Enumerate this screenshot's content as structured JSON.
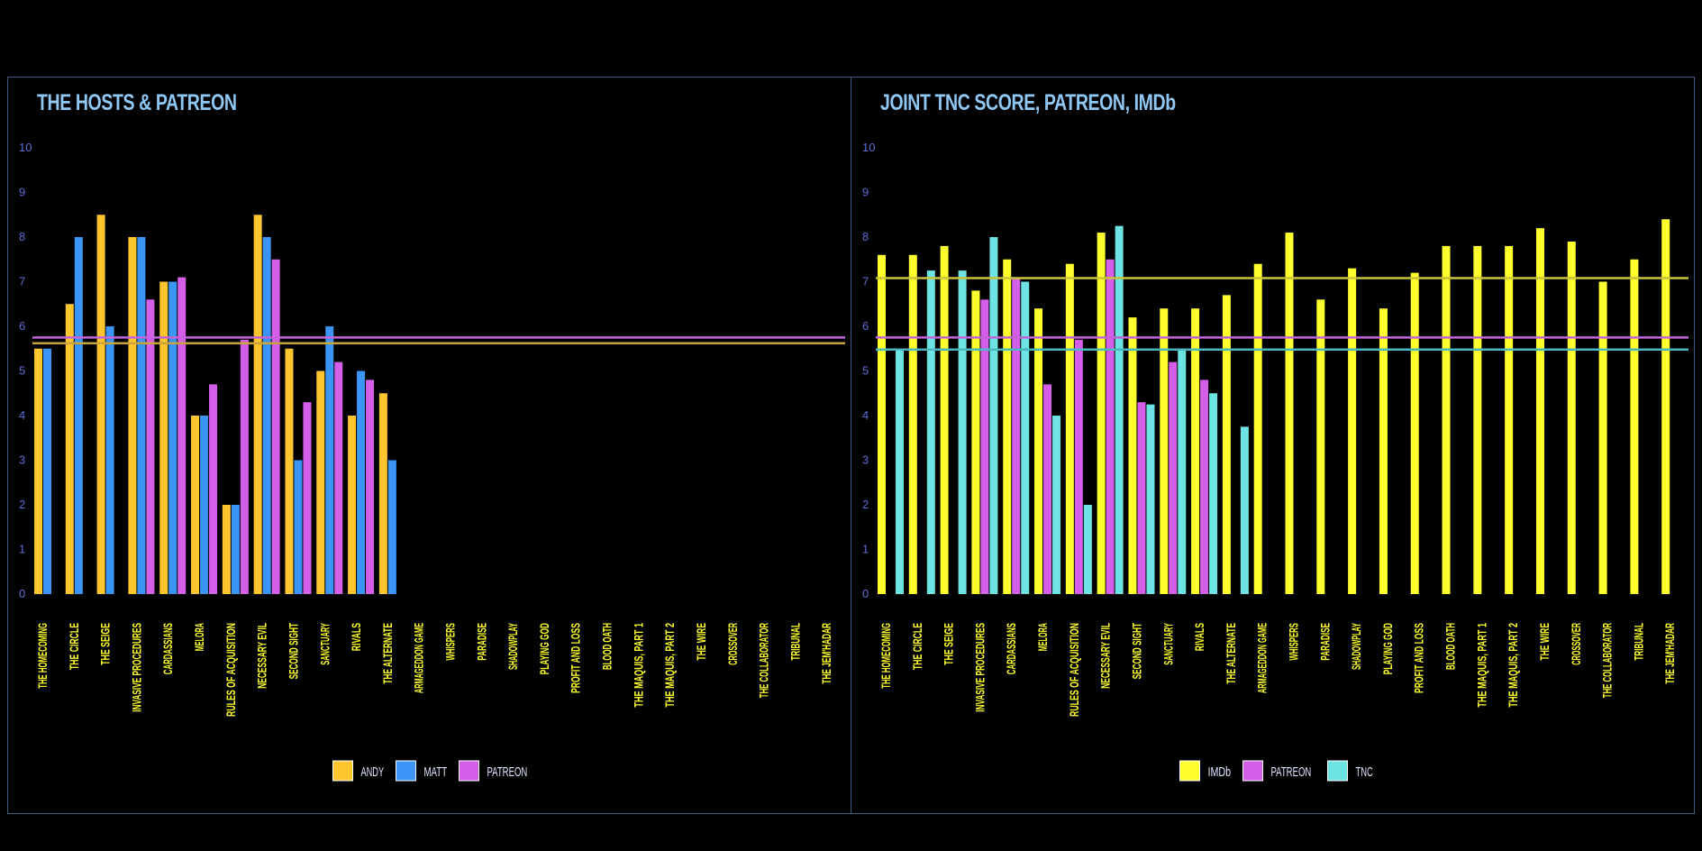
{
  "chart_data": [
    {
      "type": "bar",
      "title": "THE HOSTS & PATREON",
      "categories": [
        "THE HOMECOMING",
        "THE CIRCLE",
        "THE SEIGE",
        "INVASIVE PROCEDURES",
        "CARDASSIANS",
        "MELORA",
        "RULES OF ACQUISITION",
        "NECESSARY EVIL",
        "SECOND SIGHT",
        "SANCTUARY",
        "RIVALS",
        "THE ALTERNATE",
        "ARMAGEDDON GAME",
        "WHISPERS",
        "PARADISE",
        "SHADOWPLAY",
        "PLAYING GOD",
        "PROFIT AND LOSS",
        "BLOOD OATH",
        "THE MAQUIS, PART 1",
        "THE MAQUIS, PART 2",
        "THE WIRE",
        "CROSSOVER",
        "THE COLLABORATOR",
        "TRIBUNAL",
        "THE JEM'HADAR"
      ],
      "series": [
        {
          "name": "ANDY",
          "color": "#ffc52e",
          "values": [
            5.5,
            6.5,
            8.5,
            8,
            7,
            4,
            2,
            8.5,
            5.5,
            5,
            4,
            4.5,
            null,
            null,
            null,
            null,
            null,
            null,
            null,
            null,
            null,
            null,
            null,
            null,
            null,
            null
          ]
        },
        {
          "name": "MATT",
          "color": "#3a95f7",
          "values": [
            5.5,
            8,
            6,
            8,
            7,
            4,
            2,
            8,
            3,
            6,
            5,
            3,
            null,
            null,
            null,
            null,
            null,
            null,
            null,
            null,
            null,
            null,
            null,
            null,
            null,
            null
          ]
        },
        {
          "name": "PATREON",
          "color": "#d35ee8",
          "values": [
            null,
            null,
            null,
            6.6,
            7.1,
            4.7,
            5.7,
            7.5,
            4.3,
            5.2,
            4.8,
            null,
            null,
            null,
            null,
            null,
            null,
            null,
            null,
            null,
            null,
            null,
            null,
            null,
            null,
            null
          ]
        }
      ],
      "reference_lines": [
        {
          "color": "#c463d9",
          "value": 5.75
        },
        {
          "color": "#c9a43a",
          "value": 5.62
        }
      ],
      "ylim": [
        0,
        10
      ],
      "yticks": [
        "0",
        "1",
        "2",
        "3",
        "4",
        "5",
        "6",
        "7",
        "8",
        "9",
        "10"
      ],
      "legend": "bottom-center",
      "grid": false
    },
    {
      "type": "bar",
      "title": "JOINT TNC SCORE, PATREON, IMDb",
      "categories": [
        "THE HOMECOMING",
        "THE CIRCLE",
        "THE SEIGE",
        "INVASIVE PROCEDURES",
        "CARDASSIANS",
        "MELORA",
        "RULES OF ACQUISITION",
        "NECESSARY EVIL",
        "SECOND SIGHT",
        "SANCTUARY",
        "RIVALS",
        "THE ALTERNATE",
        "ARMAGEDDON GAME",
        "WHISPERS",
        "PARADISE",
        "SHADOWPLAY",
        "PLAYING GOD",
        "PROFIT AND LOSS",
        "BLOOD OATH",
        "THE MAQUIS, PART 1",
        "THE MAQUIS, PART 2",
        "THE WIRE",
        "CROSSOVER",
        "THE COLLABORATOR",
        "TRIBUNAL",
        "THE JEM'HADAR"
      ],
      "series": [
        {
          "name": "IMDb",
          "color": "#ffff2d",
          "values": [
            7.6,
            7.6,
            7.8,
            6.8,
            7.5,
            6.4,
            7.4,
            8.1,
            6.2,
            6.4,
            6.4,
            6.7,
            7.4,
            8.1,
            6.6,
            7.3,
            6.4,
            7.2,
            7.8,
            7.8,
            7.8,
            8.2,
            7.9,
            7.0,
            7.5,
            8.4
          ]
        },
        {
          "name": "PATREON",
          "color": "#d35ee8",
          "values": [
            null,
            null,
            null,
            6.6,
            7.1,
            4.7,
            5.7,
            7.5,
            4.3,
            5.2,
            4.8,
            null,
            null,
            null,
            null,
            null,
            null,
            null,
            null,
            null,
            null,
            null,
            null,
            null,
            null,
            null
          ]
        },
        {
          "name": "TNC",
          "color": "#6ee3e3",
          "values": [
            5.5,
            7.25,
            7.25,
            8,
            7,
            4,
            2,
            8.25,
            4.25,
            5.5,
            4.5,
            3.75,
            null,
            null,
            null,
            null,
            null,
            null,
            null,
            null,
            null,
            null,
            null,
            null,
            null,
            null
          ]
        }
      ],
      "reference_lines": [
        {
          "color": "#c9c23a",
          "value": 7.08
        },
        {
          "color": "#c463d9",
          "value": 5.75
        },
        {
          "color": "#4bb8c0",
          "value": 5.48
        }
      ],
      "ylim": [
        0,
        10
      ],
      "yticks": [
        "0",
        "1",
        "2",
        "3",
        "4",
        "5",
        "6",
        "7",
        "8",
        "9",
        "10"
      ],
      "legend": "bottom-center",
      "grid": false
    }
  ]
}
